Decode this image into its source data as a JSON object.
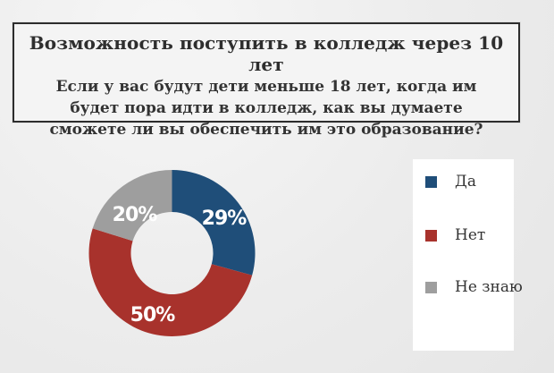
{
  "header": {
    "title": "Возможность поступить в колледж через 10 лет",
    "question": "Если у вас будут дети меньше 18 лет, когда им будет пора идти в колледж, как вы думаете сможете ли вы обеспечить им это образование?"
  },
  "chart_data": {
    "type": "pie",
    "donut": true,
    "slices": [
      {
        "name": "Да",
        "value": 29,
        "label": "29%",
        "color": "#1f4e79"
      },
      {
        "name": "Нет",
        "value": 50,
        "label": "50%",
        "color": "#a8322c"
      },
      {
        "name": "Не знаю",
        "value": 20,
        "label": "20%",
        "color": "#9e9e9e"
      }
    ],
    "legend_position": "right"
  },
  "legend": {
    "items": [
      {
        "label": "Да",
        "color": "#1f4e79"
      },
      {
        "label": "Нет",
        "color": "#a8322c"
      },
      {
        "label": "Не знаю",
        "color": "#9e9e9e"
      }
    ]
  }
}
